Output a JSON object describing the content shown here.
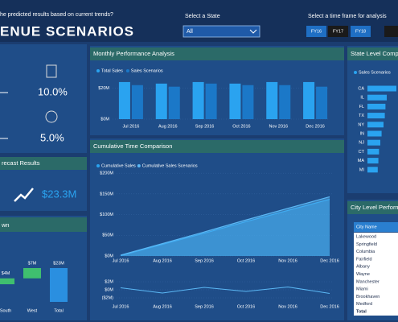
{
  "header": {
    "question": "he predicted results based on current trends?",
    "title": "ENUE SCENARIOS",
    "state_label": "Select a State",
    "state_value": "All",
    "time_label": "Select a time frame for analysis",
    "time_buttons": [
      "FY16",
      "FY17",
      "FY18"
    ]
  },
  "kpis": {
    "values": [
      "10.0%",
      "5.0%"
    ],
    "forecast_title": "recast Results",
    "forecast_value": "$23.3M"
  },
  "city_table": {
    "title": "City Level Perform",
    "header": "City Name",
    "rows": [
      "Lakewood",
      "Springfield",
      "Columbia",
      "Fairfield",
      "Albany",
      "Wayne",
      "Manchester",
      "Miami",
      "Brookhaven",
      "Medford"
    ],
    "total": "Total"
  },
  "chart_data": [
    {
      "type": "bar",
      "title": "Monthly Performance Analysis",
      "categories": [
        "Jul 2016",
        "Aug 2016",
        "Sep 2016",
        "Oct 2016",
        "Nov 2016",
        "Dec 2016"
      ],
      "series": [
        {
          "name": "Total Sales",
          "color": "#2aa3f0",
          "values": [
            24,
            23,
            24,
            23,
            24,
            24
          ]
        },
        {
          "name": "Sales Scenarios",
          "color": "#1b78c8",
          "values": [
            22,
            21,
            23,
            22,
            22,
            21
          ]
        }
      ],
      "ylim": [
        0,
        25
      ],
      "yticks": [
        {
          "value": 0,
          "label": "$0M"
        },
        {
          "value": 20,
          "label": "$20M"
        }
      ]
    },
    {
      "type": "area",
      "title": "Cumulative Time Comparison",
      "categories": [
        "Jul 2016",
        "Aug 2016",
        "Sep 2016",
        "Oct 2016",
        "Nov 2016",
        "Dec 2016"
      ],
      "series": [
        {
          "name": "Cumulative Sales",
          "color": "#2aa3f0",
          "values": [
            1,
            28,
            55,
            83,
            110,
            137
          ]
        },
        {
          "name": "Cumulative Sales Scenarios",
          "color": "#5bb8f5",
          "values": [
            2,
            30,
            58,
            87,
            115,
            143
          ]
        }
      ],
      "ylim": [
        0,
        210
      ],
      "yticks": [
        {
          "value": 0,
          "label": "$0M"
        },
        {
          "value": 50,
          "label": "$50M"
        },
        {
          "value": 100,
          "label": "$100M"
        },
        {
          "value": 150,
          "label": "$150M"
        },
        {
          "value": 200,
          "label": "$200M"
        }
      ]
    },
    {
      "type": "line",
      "categories": [
        "Jul 2016",
        "Aug 2016",
        "Sep 2016",
        "Oct 2016",
        "Nov 2016",
        "Dec 2016"
      ],
      "color": "#5bb8f5",
      "values": [
        0.5,
        -0.8,
        0.6,
        -0.4,
        0.7,
        -0.9
      ],
      "ylim": [
        -2.5,
        2.5
      ],
      "yticks": [
        {
          "value": -2,
          "label": "($2M)"
        },
        {
          "value": 0,
          "label": "$0M"
        },
        {
          "value": 2,
          "label": "$2M"
        }
      ]
    },
    {
      "type": "hbar",
      "title": "State Level Comp",
      "categories": [
        "CA",
        "IL",
        "FL",
        "TX",
        "NY",
        "IN",
        "NJ",
        "CT",
        "MA",
        "MI"
      ],
      "series": [
        {
          "name": "Sales Scenarios",
          "color": "#2aa3f0",
          "values": [
            45,
            30,
            28,
            27,
            25,
            22,
            20,
            18,
            17,
            16
          ]
        }
      ]
    },
    {
      "type": "waterfall",
      "title": "wn",
      "categories": [
        "South",
        "West",
        "Total"
      ],
      "values": [
        4,
        7,
        23
      ],
      "value_labels": [
        "$4M",
        "$7M",
        "$23M"
      ],
      "colors": [
        "#3fbf6f",
        "#3fbf6f",
        "#2a8fe0"
      ]
    }
  ]
}
